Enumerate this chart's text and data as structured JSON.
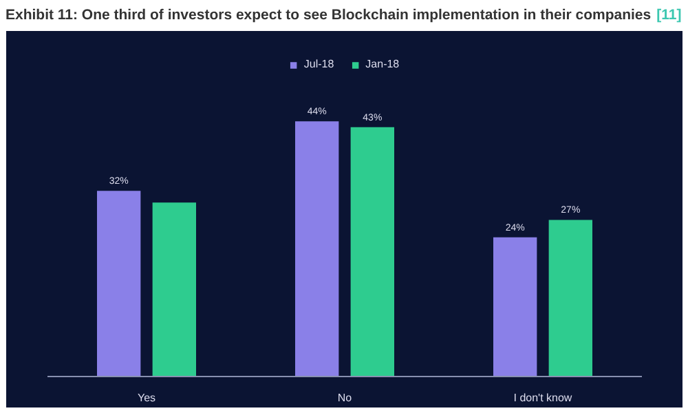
{
  "chart_data": {
    "type": "bar",
    "title": "Exhibit 11: One third of investors expect to see Blockchain implementation in their companies",
    "annotations": [
      "[11]"
    ],
    "categories": [
      "Yes",
      "No",
      "I don't know"
    ],
    "series": [
      {
        "name": "Jul-18",
        "color": "#8a80e8",
        "values": [
          32,
          44,
          24
        ],
        "value_labels": [
          "32%",
          "44%",
          "24%"
        ]
      },
      {
        "name": "Jan-18",
        "color": "#2ecc8f",
        "values": [
          30,
          43,
          27
        ],
        "value_labels": [
          null,
          "43%",
          "27%"
        ]
      }
    ],
    "legend": "top",
    "grid": false
  }
}
